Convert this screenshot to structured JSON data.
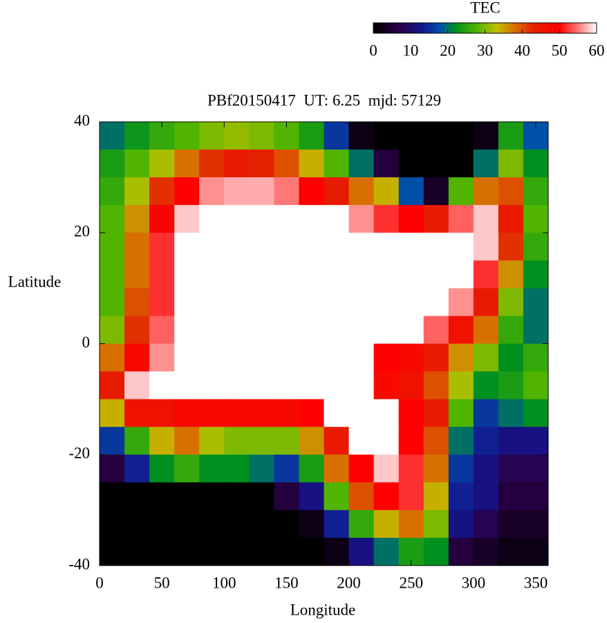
{
  "chart_data": {
    "type": "heatmap",
    "title": "PBf20150417  UT: 6.25  mjd: 57129",
    "x_label": "Longitude",
    "y_label": "Latitude",
    "colorbar_label": "TEC",
    "x": [
      10,
      30,
      50,
      70,
      90,
      110,
      130,
      150,
      170,
      190,
      210,
      230,
      250,
      270,
      290,
      310,
      330,
      350
    ],
    "y": [
      37.5,
      32.5,
      27.5,
      22.5,
      17.5,
      12.5,
      7.5,
      2.5,
      -2.5,
      -7.5,
      -12.5,
      -17.5,
      -22.5,
      -27.5,
      -32.5,
      -37.5
    ],
    "z": [
      [
        20,
        23,
        26,
        28,
        30,
        31,
        30,
        28,
        24,
        16,
        2,
        0,
        0,
        0,
        0,
        2,
        24,
        18
      ],
      [
        24,
        28,
        32,
        38,
        42,
        44,
        43,
        40,
        34,
        28,
        20,
        6,
        0,
        0,
        0,
        20,
        30,
        22
      ],
      [
        26,
        32,
        42,
        50,
        56,
        57,
        57,
        55,
        50,
        44,
        38,
        34,
        18,
        4,
        28,
        38,
        40,
        26
      ],
      [
        28,
        36,
        50,
        58,
        60,
        60,
        60,
        60,
        60,
        60,
        56,
        52,
        50,
        44,
        54,
        58,
        44,
        28
      ],
      [
        28,
        38,
        52,
        60,
        60,
        60,
        60,
        60,
        60,
        60,
        60,
        60,
        60,
        60,
        60,
        58,
        42,
        26
      ],
      [
        28,
        38,
        52,
        60,
        60,
        60,
        60,
        60,
        60,
        60,
        60,
        60,
        60,
        60,
        60,
        52,
        36,
        22
      ],
      [
        28,
        40,
        52,
        60,
        60,
        60,
        60,
        60,
        60,
        60,
        60,
        60,
        60,
        60,
        56,
        44,
        30,
        20
      ],
      [
        30,
        42,
        54,
        60,
        60,
        60,
        60,
        60,
        60,
        60,
        60,
        60,
        60,
        54,
        46,
        38,
        26,
        20
      ],
      [
        38,
        48,
        56,
        60,
        60,
        60,
        60,
        60,
        60,
        60,
        60,
        50,
        48,
        44,
        36,
        30,
        22,
        26
      ],
      [
        44,
        58,
        60,
        60,
        60,
        60,
        60,
        60,
        60,
        60,
        60,
        48,
        46,
        40,
        32,
        22,
        24,
        28
      ],
      [
        34,
        46,
        46,
        48,
        48,
        48,
        48,
        48,
        50,
        60,
        60,
        60,
        50,
        44,
        28,
        16,
        20,
        22
      ],
      [
        16,
        26,
        34,
        38,
        32,
        30,
        30,
        30,
        36,
        44,
        60,
        60,
        50,
        40,
        20,
        14,
        12,
        12
      ],
      [
        6,
        14,
        22,
        26,
        22,
        22,
        20,
        16,
        24,
        38,
        50,
        58,
        52,
        38,
        16,
        12,
        8,
        8
      ],
      [
        0,
        0,
        0,
        0,
        0,
        0,
        0,
        6,
        12,
        28,
        40,
        50,
        52,
        34,
        14,
        12,
        6,
        6
      ],
      [
        0,
        0,
        0,
        0,
        0,
        0,
        0,
        0,
        2,
        14,
        26,
        34,
        38,
        30,
        12,
        8,
        4,
        4
      ],
      [
        0,
        0,
        0,
        0,
        0,
        0,
        0,
        0,
        0,
        2,
        12,
        20,
        24,
        22,
        6,
        4,
        2,
        2
      ]
    ],
    "xlim": [
      0,
      360
    ],
    "ylim": [
      -40,
      40
    ],
    "xticks": [
      0,
      50,
      100,
      150,
      200,
      250,
      300,
      350
    ],
    "yticks": [
      -40,
      -20,
      0,
      20,
      40
    ],
    "clim": [
      0,
      60
    ],
    "cticks": [
      0,
      10,
      20,
      30,
      40,
      50,
      60
    ],
    "colorscale": [
      [
        0,
        "#000000"
      ],
      [
        7,
        "#2a0048"
      ],
      [
        13,
        "#14148c"
      ],
      [
        18,
        "#0050a8"
      ],
      [
        22,
        "#009020"
      ],
      [
        28,
        "#50b400"
      ],
      [
        33,
        "#c0c000"
      ],
      [
        38,
        "#d87000"
      ],
      [
        43,
        "#e42000"
      ],
      [
        50,
        "#ff0000"
      ],
      [
        56,
        "#ff9090"
      ],
      [
        60,
        "#ffffff"
      ]
    ]
  }
}
